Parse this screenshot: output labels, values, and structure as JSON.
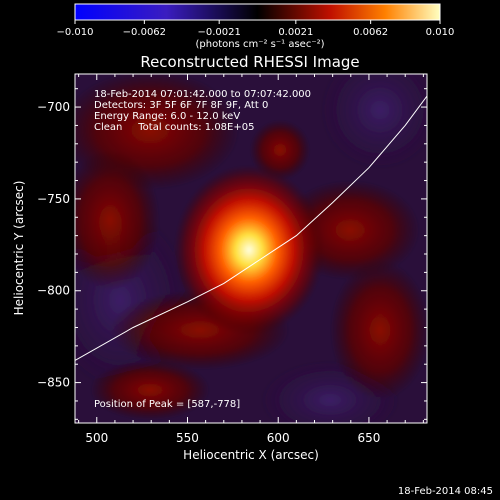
{
  "colorbar": {
    "tick_labels": [
      "−0.010",
      "−0.0062",
      "−0.0021",
      "0.0021",
      "0.0062",
      "0.010"
    ],
    "tick_values": [
      -0.01,
      -0.0062,
      -0.0021,
      0.0021,
      0.0062,
      0.01
    ],
    "range": [
      -0.01,
      0.01
    ],
    "units": "(photons cm⁻² s⁻¹ asec⁻²)"
  },
  "chart_data": {
    "type": "heatmap",
    "title": "Reconstructed RHESSI Image",
    "xlabel": "Heliocentric X (arcsec)",
    "ylabel": "Heliocentric Y (arcsec)",
    "xlim": [
      488,
      682
    ],
    "ylim": [
      -872,
      -682
    ],
    "x_ticks": [
      500,
      550,
      600,
      650
    ],
    "y_ticks": [
      -700,
      -750,
      -800,
      -850
    ],
    "x_tick_labels": [
      "500",
      "550",
      "600",
      "650"
    ],
    "y_tick_labels": [
      "−700",
      "−750",
      "−800",
      "−850"
    ],
    "annotations": [
      "18-Feb-2014 07:01:42.000 to 07:07:42.000",
      "Detectors: 3F 5F 6F 7F 8F 9F, Att 0",
      "Energy Range: 6.0 - 12.0 keV",
      "Clean     Total counts: 1.08E+05"
    ],
    "peak_label": "Position of Peak = [587,-778]",
    "peak": [
      587,
      -778
    ],
    "limb_curve": [
      [
        488,
        -838
      ],
      [
        520,
        -820
      ],
      [
        550,
        -806
      ],
      [
        570,
        -796
      ],
      [
        590,
        -783
      ],
      [
        610,
        -770
      ],
      [
        630,
        -752
      ],
      [
        650,
        -733
      ],
      [
        670,
        -710
      ],
      [
        682,
        -694
      ]
    ]
  },
  "timestamp": "18-Feb-2014 08:45"
}
